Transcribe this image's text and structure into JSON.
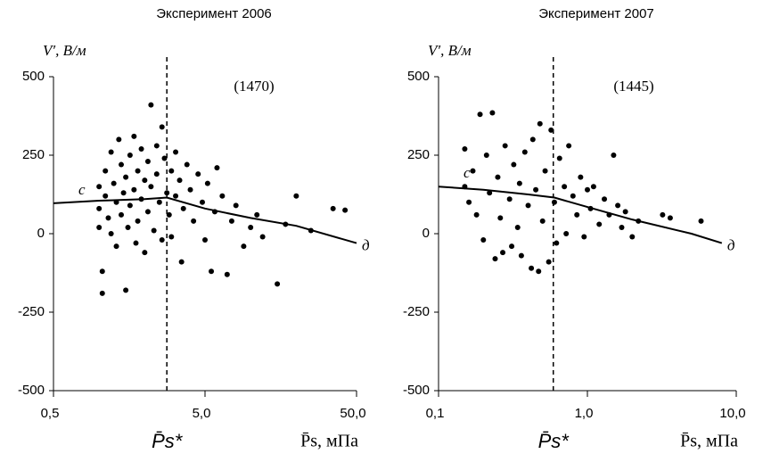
{
  "chart_data": [
    {
      "type": "scatter",
      "title": "Эксперимент 2006",
      "ylabel": "V′, В/м",
      "xlabel": "P̄s, мПа",
      "reference_label": "P̄s*",
      "reference_x": 2.8,
      "count_label": "(1470)",
      "start_label": "с",
      "end_label": "д",
      "log_x": true,
      "color": "#000000",
      "xlim": [
        0.5,
        50
      ],
      "xticks": [
        {
          "value": 0.5,
          "label": "0,5"
        },
        {
          "value": 5,
          "label": "5,0"
        },
        {
          "value": 50,
          "label": "50,0"
        }
      ],
      "ylim": [
        -500,
        500
      ],
      "yticks": [
        500,
        250,
        0,
        -250,
        -500
      ],
      "x": [
        1.0,
        1.0,
        1.0,
        1.05,
        1.05,
        1.1,
        1.1,
        1.15,
        1.2,
        1.2,
        1.25,
        1.3,
        1.3,
        1.35,
        1.4,
        1.4,
        1.45,
        1.5,
        1.5,
        1.55,
        1.6,
        1.6,
        1.7,
        1.7,
        1.75,
        1.8,
        1.8,
        1.9,
        1.9,
        2.0,
        2.0,
        2.1,
        2.1,
        2.2,
        2.2,
        2.3,
        2.4,
        2.4,
        2.5,
        2.6,
        2.6,
        2.7,
        2.8,
        2.9,
        3.0,
        3.0,
        3.2,
        3.2,
        3.4,
        3.5,
        3.6,
        3.8,
        4.0,
        4.2,
        4.5,
        4.8,
        5.0,
        5.2,
        5.5,
        5.8,
        6.0,
        6.5,
        7.0,
        7.5,
        8.0,
        9.0,
        10,
        11,
        12,
        15,
        17,
        20,
        25,
        35,
        42
      ],
      "values": [
        150,
        80,
        20,
        -120,
        -190,
        200,
        120,
        50,
        260,
        0,
        160,
        100,
        -40,
        300,
        220,
        60,
        130,
        -180,
        180,
        20,
        250,
        90,
        310,
        140,
        -30,
        200,
        40,
        270,
        110,
        170,
        -60,
        230,
        70,
        410,
        150,
        10,
        280,
        190,
        100,
        340,
        -20,
        240,
        130,
        60,
        200,
        -10,
        260,
        120,
        170,
        -90,
        80,
        220,
        140,
        40,
        190,
        100,
        -20,
        160,
        -120,
        70,
        210,
        120,
        -130,
        40,
        90,
        -40,
        20,
        60,
        -10,
        -160,
        30,
        120,
        10,
        80,
        75
      ],
      "fit": {
        "color": "#000000",
        "x": [
          0.5,
          1,
          2,
          2.8,
          5,
          10,
          20,
          50
        ],
        "values": [
          97,
          105,
          110,
          115,
          80,
          50,
          25,
          -30
        ]
      }
    },
    {
      "type": "scatter",
      "title": "Эксперимент 2007",
      "ylabel": "V′, В/м",
      "xlabel": "P̄s, мПа",
      "reference_label": "P̄s*",
      "reference_x": 0.59,
      "count_label": "(1445)",
      "start_label": "с",
      "end_label": "д",
      "log_x": true,
      "color": "#000000",
      "xlim": [
        0.1,
        10
      ],
      "xticks": [
        {
          "value": 0.1,
          "label": "0,1"
        },
        {
          "value": 1,
          "label": "1,0"
        },
        {
          "value": 10,
          "label": "10,0"
        }
      ],
      "ylim": [
        -500,
        500
      ],
      "yticks": [
        500,
        250,
        0,
        -250,
        -500
      ],
      "x": [
        0.15,
        0.15,
        0.16,
        0.17,
        0.18,
        0.19,
        0.2,
        0.21,
        0.22,
        0.23,
        0.24,
        0.25,
        0.26,
        0.27,
        0.28,
        0.3,
        0.31,
        0.32,
        0.34,
        0.35,
        0.36,
        0.38,
        0.4,
        0.42,
        0.43,
        0.45,
        0.47,
        0.48,
        0.5,
        0.52,
        0.55,
        0.57,
        0.6,
        0.62,
        0.65,
        0.7,
        0.72,
        0.75,
        0.8,
        0.85,
        0.9,
        0.95,
        1.0,
        1.05,
        1.1,
        1.2,
        1.3,
        1.4,
        1.5,
        1.6,
        1.7,
        1.8,
        2.0,
        2.2,
        3.2,
        3.6,
        5.8
      ],
      "values": [
        270,
        150,
        100,
        200,
        60,
        380,
        -20,
        250,
        130,
        385,
        -80,
        180,
        50,
        -60,
        280,
        110,
        -40,
        220,
        20,
        160,
        -70,
        260,
        90,
        -110,
        300,
        140,
        -120,
        350,
        40,
        200,
        -90,
        330,
        100,
        -30,
        240,
        150,
        0,
        280,
        120,
        60,
        180,
        -10,
        140,
        80,
        150,
        30,
        110,
        60,
        250,
        90,
        20,
        70,
        -10,
        40,
        60,
        50,
        40
      ],
      "fit": {
        "color": "#000000",
        "x": [
          0.1,
          0.2,
          0.4,
          0.6,
          1,
          2,
          5,
          8
        ],
        "values": [
          150,
          140,
          125,
          115,
          85,
          45,
          0,
          -30
        ]
      }
    }
  ]
}
